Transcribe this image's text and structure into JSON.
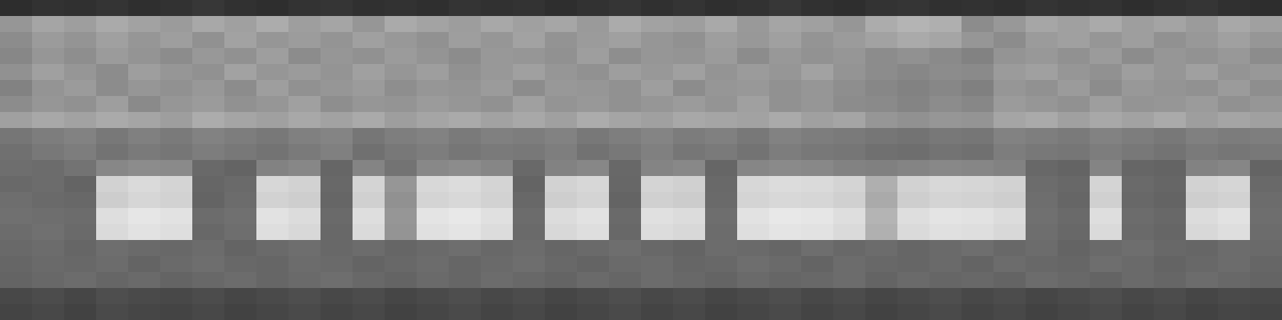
{
  "chart_data": {
    "type": "heatmap",
    "color": "gray",
    "tick_labels": false,
    "grid": false,
    "zlim": [
      0,
      255
    ],
    "cells": [
      [
        45,
        50,
        48,
        52,
        47,
        50,
        55,
        49,
        46,
        51,
        53,
        48,
        50,
        47,
        52,
        49,
        51,
        46,
        50,
        53,
        48,
        52,
        47,
        50,
        55,
        49,
        46,
        51,
        53,
        48,
        50,
        47,
        52,
        49,
        51,
        46,
        50,
        53,
        48,
        45
      ],
      [
        150,
        165,
        158,
        170,
        162,
        155,
        168,
        160,
        172,
        158,
        165,
        150,
        170,
        163,
        157,
        168,
        160,
        166,
        154,
        171,
        162,
        158,
        169,
        153,
        165,
        160,
        150,
        172,
        180,
        175,
        140,
        152,
        166,
        160,
        170,
        158,
        164,
        155,
        168,
        160
      ],
      [
        140,
        155,
        148,
        160,
        150,
        158,
        145,
        162,
        150,
        156,
        148,
        160,
        152,
        145,
        158,
        150,
        162,
        147,
        155,
        160,
        150,
        145,
        158,
        152,
        160,
        148,
        155,
        162,
        170,
        165,
        150,
        140,
        155,
        160,
        150,
        158,
        145,
        152,
        160,
        150
      ],
      [
        135,
        150,
        142,
        155,
        148,
        140,
        152,
        145,
        158,
        140,
        150,
        145,
        155,
        148,
        140,
        152,
        150,
        145,
        158,
        142,
        150,
        148,
        155,
        140,
        152,
        146,
        150,
        140,
        145,
        138,
        130,
        148,
        152,
        145,
        155,
        140,
        150,
        146,
        152,
        140
      ],
      [
        145,
        160,
        150,
        140,
        158,
        150,
        145,
        162,
        150,
        155,
        148,
        160,
        150,
        158,
        145,
        152,
        160,
        150,
        145,
        158,
        152,
        160,
        148,
        155,
        150,
        162,
        148,
        140,
        135,
        140,
        138,
        155,
        160,
        150,
        145,
        158,
        150,
        160,
        148,
        152
      ],
      [
        130,
        148,
        155,
        140,
        150,
        145,
        152,
        140,
        158,
        145,
        150,
        155,
        142,
        150,
        148,
        155,
        140,
        152,
        150,
        145,
        158,
        140,
        150,
        152,
        145,
        150,
        142,
        135,
        130,
        135,
        128,
        150,
        145,
        155,
        140,
        152,
        148,
        145,
        155,
        142
      ],
      [
        140,
        150,
        145,
        158,
        138,
        150,
        155,
        145,
        150,
        160,
        142,
        150,
        148,
        155,
        150,
        145,
        160,
        148,
        152,
        145,
        150,
        155,
        148,
        160,
        145,
        150,
        140,
        138,
        132,
        140,
        135,
        155,
        150,
        145,
        158,
        148,
        150,
        155,
        145,
        150
      ],
      [
        160,
        168,
        162,
        170,
        165,
        158,
        172,
        165,
        160,
        168,
        162,
        170,
        158,
        165,
        170,
        162,
        168,
        160,
        172,
        165,
        160,
        168,
        165,
        162,
        170,
        160,
        165,
        150,
        145,
        150,
        148,
        165,
        170,
        160,
        168,
        162,
        170,
        158,
        165,
        160
      ],
      [
        118,
        125,
        130,
        120,
        128,
        122,
        130,
        125,
        120,
        128,
        132,
        118,
        126,
        130,
        122,
        128,
        125,
        130,
        120,
        126,
        132,
        124,
        128,
        120,
        130,
        125,
        122,
        118,
        115,
        120,
        118,
        130,
        126,
        122,
        130,
        125,
        120,
        128,
        124,
        126
      ],
      [
        112,
        120,
        125,
        115,
        122,
        118,
        125,
        120,
        115,
        122,
        128,
        112,
        120,
        125,
        118,
        122,
        120,
        126,
        114,
        120,
        128,
        118,
        122,
        115,
        125,
        120,
        118,
        112,
        110,
        115,
        112,
        125,
        120,
        118,
        125,
        120,
        115,
        122,
        118,
        120
      ],
      [
        110,
        108,
        115,
        135,
        140,
        138,
        105,
        100,
        130,
        135,
        102,
        132,
        115,
        136,
        140,
        134,
        105,
        130,
        135,
        104,
        132,
        136,
        102,
        134,
        138,
        136,
        130,
        128,
        132,
        136,
        134,
        130,
        104,
        100,
        132,
        102,
        100,
        130,
        134,
        100
      ],
      [
        105,
        108,
        100,
        210,
        218,
        212,
        102,
        106,
        215,
        210,
        104,
        212,
        150,
        216,
        220,
        212,
        100,
        210,
        215,
        103,
        212,
        208,
        105,
        215,
        220,
        218,
        212,
        175,
        210,
        216,
        214,
        210,
        108,
        104,
        212,
        106,
        102,
        210,
        214,
        105
      ],
      [
        110,
        106,
        104,
        205,
        214,
        210,
        100,
        108,
        210,
        206,
        102,
        208,
        145,
        212,
        216,
        210,
        104,
        206,
        212,
        100,
        208,
        204,
        106,
        212,
        216,
        214,
        208,
        170,
        206,
        212,
        210,
        206,
        110,
        102,
        208,
        104,
        100,
        206,
        210,
        108
      ],
      [
        112,
        110,
        108,
        222,
        230,
        226,
        108,
        112,
        226,
        220,
        106,
        222,
        150,
        228,
        232,
        224,
        108,
        220,
        226,
        106,
        224,
        220,
        110,
        226,
        232,
        230,
        222,
        180,
        222,
        228,
        226,
        220,
        112,
        106,
        222,
        108,
        104,
        220,
        226,
        110
      ],
      [
        108,
        112,
        106,
        218,
        226,
        222,
        104,
        110,
        222,
        216,
        104,
        218,
        148,
        224,
        228,
        220,
        106,
        216,
        222,
        104,
        220,
        216,
        108,
        222,
        228,
        226,
        218,
        176,
        218,
        224,
        222,
        216,
        110,
        104,
        218,
        106,
        102,
        216,
        222,
        108
      ],
      [
        105,
        108,
        102,
        110,
        106,
        104,
        108,
        100,
        106,
        110,
        104,
        108,
        102,
        106,
        110,
        104,
        108,
        102,
        106,
        110,
        104,
        100,
        108,
        106,
        102,
        110,
        104,
        108,
        102,
        106,
        110,
        104,
        108,
        100,
        106,
        110,
        104,
        102,
        108,
        106
      ],
      [
        102,
        106,
        104,
        108,
        100,
        106,
        110,
        104,
        102,
        108,
        106,
        100,
        104,
        108,
        102,
        106,
        110,
        104,
        100,
        106,
        108,
        102,
        104,
        110,
        106,
        100,
        108,
        104,
        102,
        106,
        100,
        108,
        104,
        102,
        110,
        106,
        100,
        104,
        108,
        102
      ],
      [
        100,
        104,
        108,
        102,
        106,
        100,
        104,
        108,
        102,
        106,
        110,
        104,
        100,
        106,
        102,
        108,
        104,
        100,
        106,
        102,
        108,
        104,
        100,
        106,
        102,
        104,
        108,
        100,
        106,
        102,
        104,
        100,
        108,
        104,
        100,
        106,
        102,
        108,
        104,
        100
      ],
      [
        72,
        76,
        70,
        78,
        74,
        72,
        76,
        70,
        74,
        78,
        72,
        76,
        70,
        74,
        78,
        72,
        76,
        70,
        74,
        78,
        72,
        76,
        70,
        74,
        78,
        72,
        76,
        70,
        74,
        78,
        72,
        76,
        70,
        74,
        78,
        72,
        76,
        70,
        74,
        72
      ],
      [
        68,
        72,
        66,
        74,
        70,
        68,
        72,
        66,
        70,
        74,
        68,
        72,
        66,
        70,
        74,
        68,
        72,
        66,
        70,
        74,
        68,
        72,
        66,
        70,
        74,
        68,
        72,
        66,
        70,
        74,
        68,
        72,
        66,
        70,
        74,
        68,
        72,
        66,
        70,
        68
      ]
    ]
  }
}
